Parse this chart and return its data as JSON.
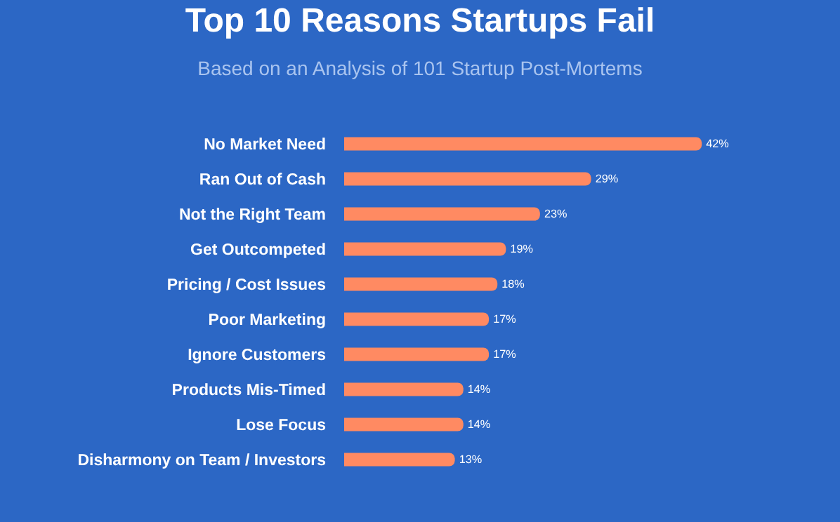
{
  "chart_data": {
    "type": "bar",
    "orientation": "horizontal",
    "title": "Top 10 Reasons Startups Fail",
    "subtitle": "Based on an Analysis of 101 Startup Post-Mortems",
    "categories": [
      "No Market Need",
      "Ran Out of Cash",
      "Not the Right Team",
      "Get Outcompeted",
      "Pricing / Cost Issues",
      "Poor Marketing",
      "Ignore Customers",
      "Products Mis-Timed",
      "Lose Focus",
      "Disharmony on Team / Investors"
    ],
    "values": [
      42,
      29,
      23,
      19,
      18,
      17,
      17,
      14,
      14,
      13
    ],
    "value_labels": [
      "42%",
      "29%",
      "23%",
      "19%",
      "18%",
      "17%",
      "17%",
      "14%",
      "14%",
      "13%"
    ],
    "color": "#ff8a62",
    "grid": false,
    "legend": false
  }
}
